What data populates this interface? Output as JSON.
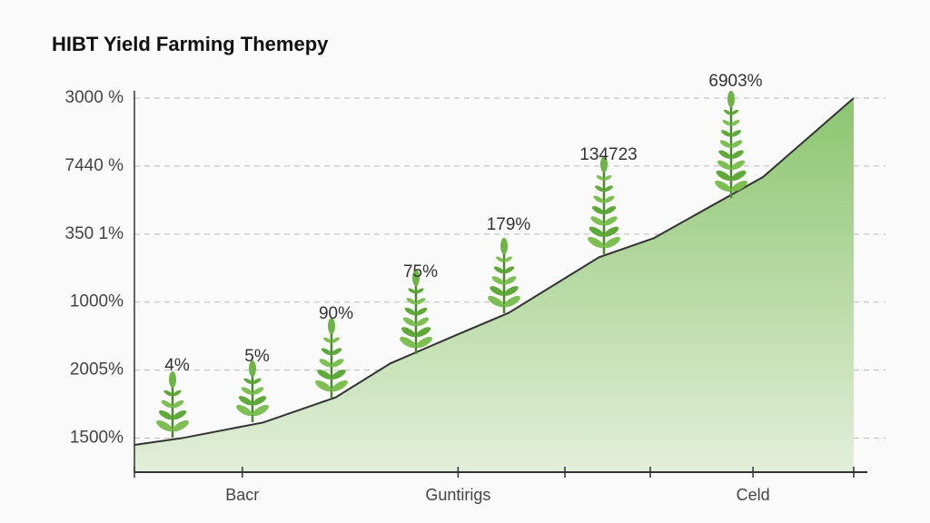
{
  "chart_data": {
    "type": "area",
    "title": "HIBT Yield Farming Themepy",
    "x": [
      0,
      6.6,
      17.9,
      28,
      35.6,
      44.4,
      52,
      64.6,
      72.2,
      87.4,
      100
    ],
    "values": [
      0.9,
      1.0,
      1.23,
      1.6,
      2.1,
      2.5,
      2.84,
      3.66,
      3.94,
      4.84,
      6.0
    ],
    "color": "#8cc56f",
    "xlim": [
      0,
      100
    ],
    "xticks": [
      {
        "value": 15,
        "label": "Bacr"
      },
      {
        "value": 45,
        "label": "Guntirigs"
      },
      {
        "value": 86,
        "label": "Celd"
      }
    ],
    "ylim": [
      0.5,
      6
    ],
    "yticks": [
      {
        "value": 1,
        "label": "1500%"
      },
      {
        "value": 2,
        "label": "2005%"
      },
      {
        "value": 3,
        "label": "1000%"
      },
      {
        "value": 4,
        "label": "350 1%"
      },
      {
        "value": 5,
        "label": "7440 %"
      },
      {
        "value": 6,
        "label": "3000 %"
      }
    ],
    "grid": true,
    "annotations": [
      "4%",
      "5%",
      "90%",
      "75%",
      "179%",
      "134723",
      "6903%"
    ]
  }
}
